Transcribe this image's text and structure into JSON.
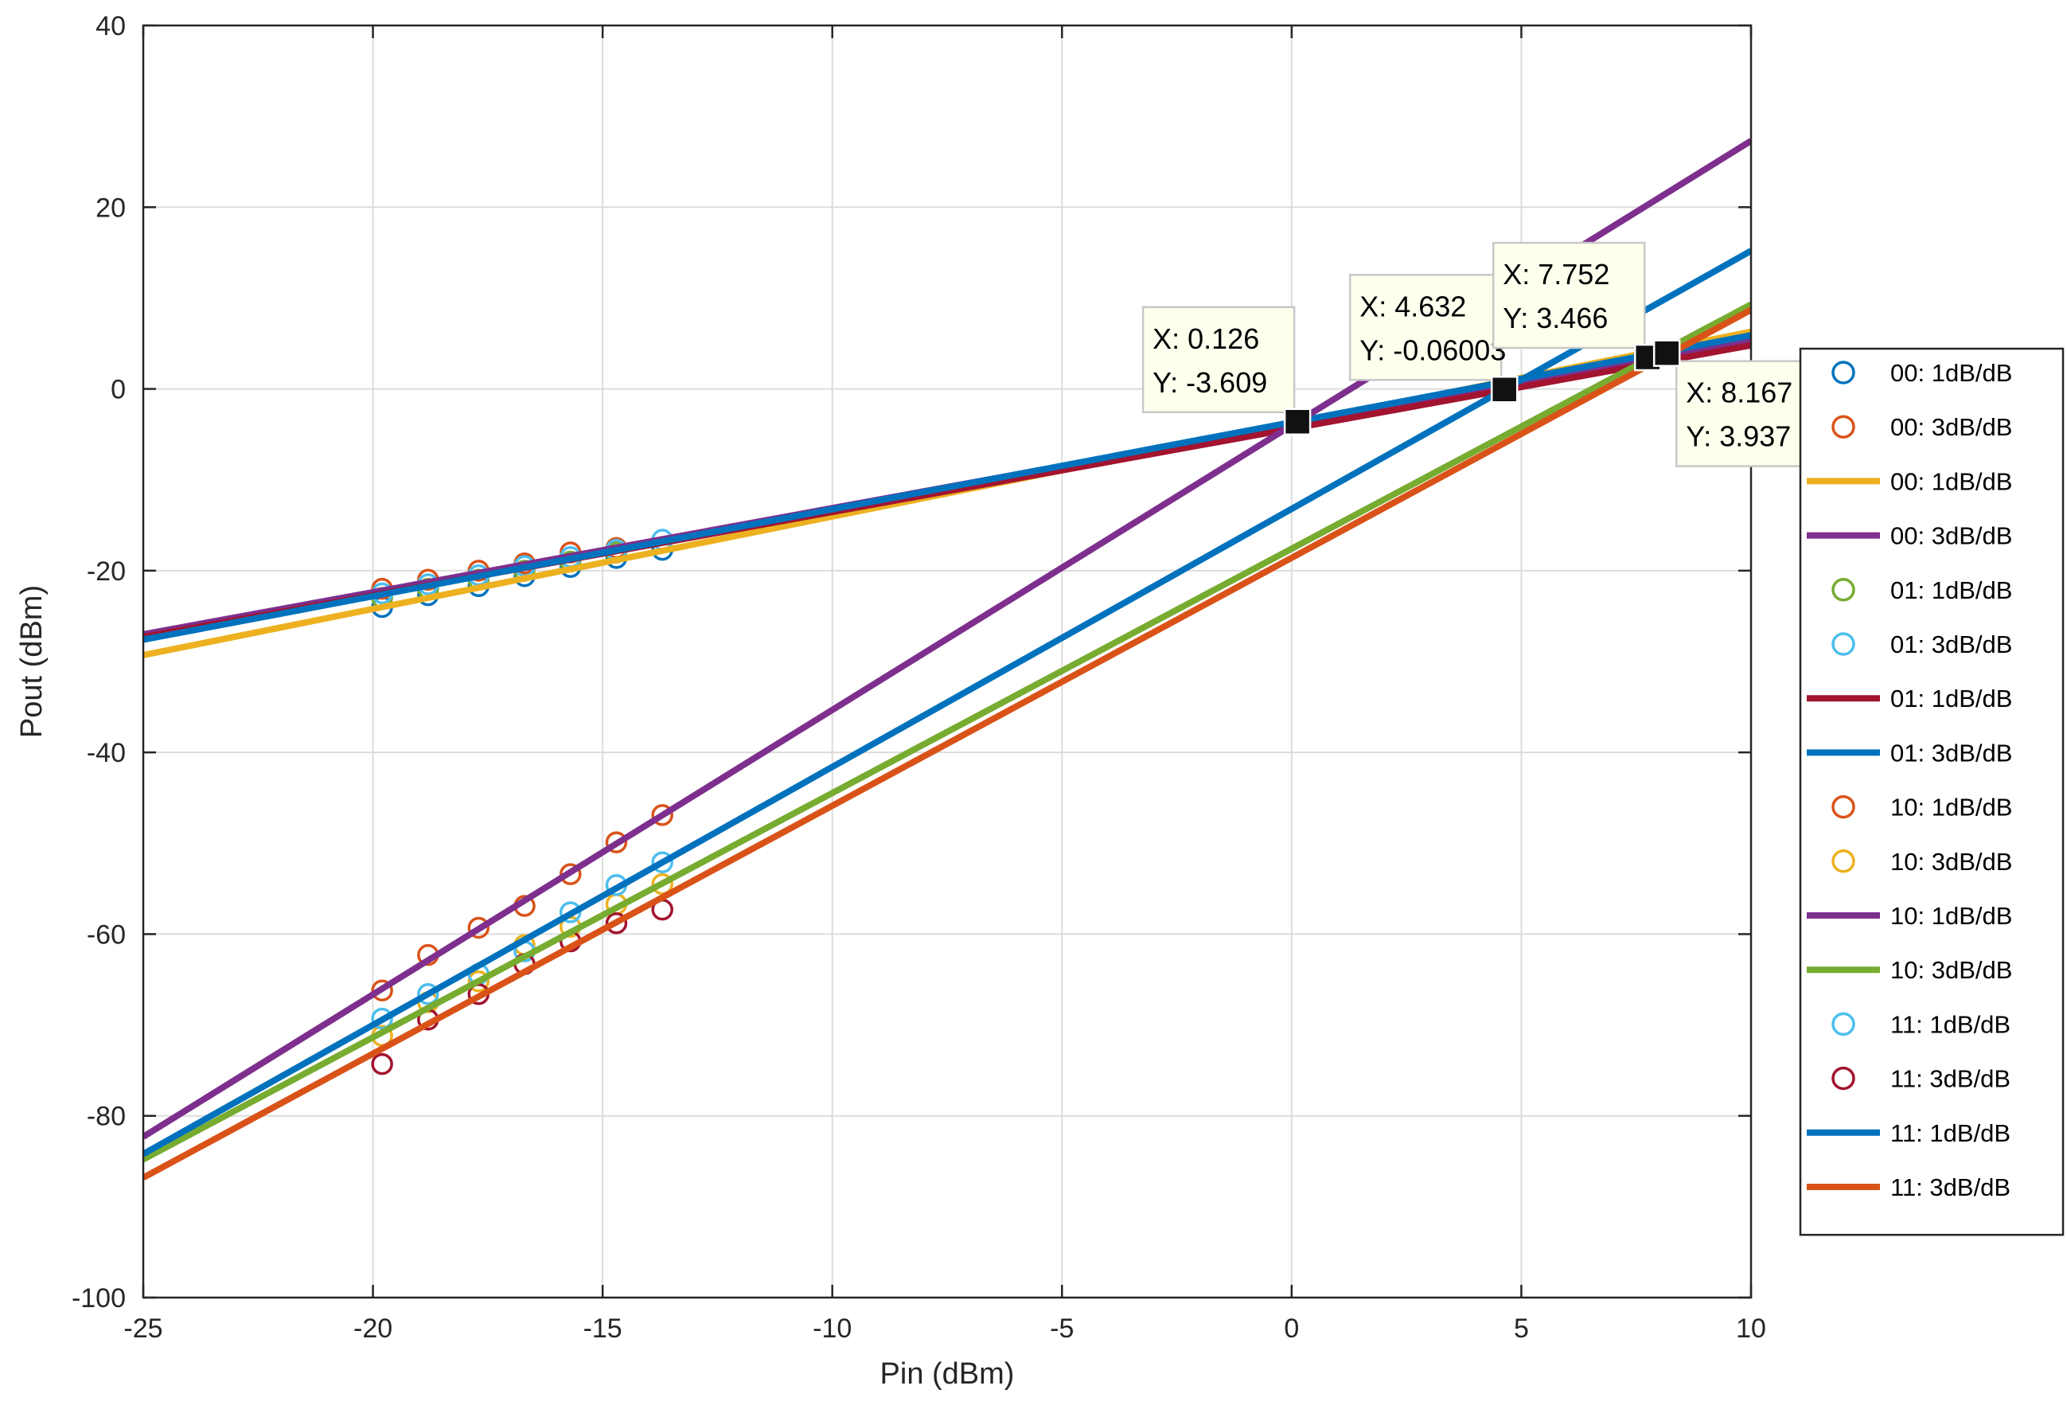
{
  "chart_data": {
    "type": "line",
    "title": "",
    "xlabel": "Pin (dBm)",
    "ylabel": "Pout (dBm)",
    "xlim": [
      -25,
      10
    ],
    "ylim": [
      -100,
      40
    ],
    "xticks": [
      -25,
      -20,
      -15,
      -10,
      -5,
      0,
      5,
      10
    ],
    "yticks": [
      -100,
      -80,
      -60,
      -40,
      -20,
      0,
      20,
      40
    ],
    "grid": true,
    "legend_position": "right",
    "colors": {
      "blue": "#0072BD",
      "orange": "#D95319",
      "yellow": "#EDB120",
      "purple": "#7E2F8E",
      "green": "#77AC30",
      "cyan": "#4DBEEE",
      "darkred": "#A2142F"
    },
    "series": [
      {
        "name": "00: 1dB/dB",
        "kind": "markers",
        "color": "#0072BD",
        "x": [
          -19.8,
          -18.8,
          -17.7,
          -16.7,
          -15.7,
          -14.7,
          -13.7
        ],
        "y": [
          -24.0,
          -22.7,
          -21.7,
          -20.6,
          -19.6,
          -18.6,
          -17.7
        ]
      },
      {
        "name": "00: 3dB/dB",
        "kind": "markers",
        "color": "#D95319",
        "x": [
          -19.8,
          -18.8,
          -17.7,
          -16.7,
          -15.7,
          -14.7
        ],
        "y": [
          -22.0,
          -21.0,
          -20.0,
          -19.2,
          -18.0,
          -17.5
        ]
      },
      {
        "name": "00: 1dB/dB",
        "kind": "line",
        "color": "#EDB120",
        "x": [
          -25,
          10
        ],
        "y": [
          -29.3,
          6.3
        ]
      },
      {
        "name": "00: 3dB/dB",
        "kind": "line",
        "color": "#7E2F8E",
        "x": [
          -25,
          10
        ],
        "y": [
          -27.0,
          5.4
        ]
      },
      {
        "name": "01: 1dB/dB",
        "kind": "markers",
        "color": "#77AC30",
        "x": [
          -19.8,
          -18.8,
          -17.7,
          -16.7,
          -15.7,
          -14.7
        ],
        "y": [
          -23.0,
          -22.0,
          -21.0,
          -20.0,
          -19.0,
          -18.0
        ]
      },
      {
        "name": "01: 3dB/dB",
        "kind": "markers",
        "color": "#4DBEEE",
        "x": [
          -19.8,
          -18.8,
          -17.7,
          -16.7,
          -15.7,
          -14.7,
          -13.7
        ],
        "y": [
          -22.5,
          -21.5,
          -20.5,
          -19.5,
          -18.5,
          -17.7,
          -16.6
        ]
      },
      {
        "name": "01: 1dB/dB",
        "kind": "line",
        "color": "#A2142F",
        "x": [
          -25,
          10
        ],
        "y": [
          -27.3,
          4.8
        ]
      },
      {
        "name": "01: 3dB/dB",
        "kind": "line",
        "color": "#0072BD",
        "x": [
          -25,
          10
        ],
        "y": [
          -27.6,
          5.9
        ]
      },
      {
        "name": "10: 1dB/dB",
        "kind": "markers",
        "color": "#D95319",
        "x": [
          -19.8,
          -18.8,
          -17.7,
          -16.7,
          -15.7,
          -14.7,
          -13.7
        ],
        "y": [
          -66.2,
          -62.3,
          -59.3,
          -56.9,
          -53.4,
          -49.9,
          -46.9
        ]
      },
      {
        "name": "10: 3dB/dB",
        "kind": "markers",
        "color": "#EDB120",
        "x": [
          -19.8,
          -18.8,
          -17.7,
          -16.7,
          -15.7,
          -14.7,
          -13.7
        ],
        "y": [
          -71.2,
          -67.5,
          -65.2,
          -61.2,
          -59.2,
          -56.7,
          -54.5
        ]
      },
      {
        "name": "10: 1dB/dB",
        "kind": "line",
        "color": "#7E2F8E",
        "x": [
          -25,
          10
        ],
        "y": [
          -82.3,
          27.3
        ]
      },
      {
        "name": "10: 3dB/dB",
        "kind": "line",
        "color": "#77AC30",
        "x": [
          -25,
          10
        ],
        "y": [
          -84.8,
          9.3
        ]
      },
      {
        "name": "11: 1dB/dB",
        "kind": "markers",
        "color": "#4DBEEE",
        "x": [
          -19.8,
          -18.8,
          -17.7,
          -16.7,
          -15.7,
          -14.7,
          -13.7
        ],
        "y": [
          -69.3,
          -66.6,
          -64.4,
          -61.9,
          -57.6,
          -54.6,
          -52.1
        ]
      },
      {
        "name": "11: 3dB/dB",
        "kind": "markers",
        "color": "#A2142F",
        "x": [
          -19.8,
          -18.8,
          -17.7,
          -16.7,
          -15.7,
          -14.7,
          -13.7
        ],
        "y": [
          -74.3,
          -69.4,
          -66.6,
          -63.3,
          -60.8,
          -58.8,
          -57.3
        ]
      },
      {
        "name": "11: 1dB/dB",
        "kind": "line",
        "color": "#0072BD",
        "x": [
          -25,
          10
        ],
        "y": [
          -84.2,
          15.2
        ]
      },
      {
        "name": "11: 3dB/dB",
        "kind": "line",
        "color": "#D95319",
        "x": [
          -25,
          10
        ],
        "y": [
          -86.8,
          8.7
        ]
      }
    ],
    "datatips": [
      {
        "x": 0.126,
        "y": -3.609,
        "line1": "X: 0.126",
        "line2": "Y: -3.609",
        "position": "upper-left"
      },
      {
        "x": 4.632,
        "y": -0.06003,
        "line1": "X: 4.632",
        "line2": "Y: -0.06003",
        "position": "upper-left"
      },
      {
        "x": 7.752,
        "y": 3.466,
        "line1": "X: 7.752",
        "line2": "Y: 3.466",
        "position": "upper-left"
      },
      {
        "x": 8.167,
        "y": 3.937,
        "line1": "X: 8.167",
        "line2": "Y: 3.937",
        "position": "lower-right"
      }
    ]
  }
}
